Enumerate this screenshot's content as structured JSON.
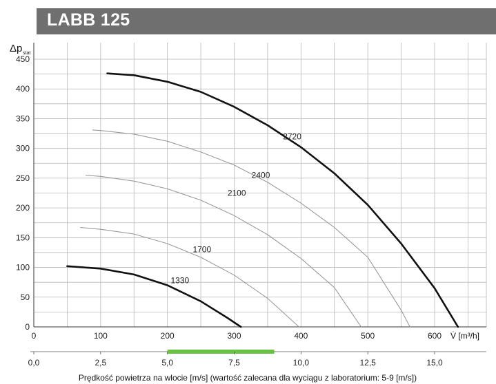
{
  "header": {
    "title": "LABB 125"
  },
  "colors": {
    "header_bg": "#6f6f6f",
    "grid": "#b8b8b8",
    "curve_bold": "#111111",
    "curve_thin": "#9a9a9a",
    "recommended_range": "#6cc04a"
  },
  "chart_data": {
    "type": "line",
    "title": "LABB 125",
    "ylabel": "Δp",
    "ylabel_sub": "stat",
    "xlabel": "V̇ [m³/h]",
    "xlabel_secondary": "Prędkość powietrza na wlocie [m/s] (wartość zalecana dla wyciągu z laboratorium: 5-9 [m/s])",
    "xlim": [
      0,
      650
    ],
    "ylim": [
      0,
      450
    ],
    "yticks": [
      "0",
      "50",
      "100",
      "150",
      "200",
      "250",
      "300",
      "350",
      "400",
      "450"
    ],
    "xticks": [
      "0",
      "100",
      "200",
      "300",
      "400",
      "500",
      "600"
    ],
    "secondary_xlim": [
      0,
      16.5
    ],
    "secondary_xticks": [
      "0,0",
      "2,5",
      "5,0",
      "7,5",
      "10,0",
      "12,5",
      "15,0"
    ],
    "recommended_velocity_range": [
      5,
      9
    ],
    "grid": true,
    "series": [
      {
        "name": "1330",
        "style": "bold",
        "label_at": [
          205,
          78
        ],
        "x": [
          50,
          100,
          150,
          200,
          250,
          290,
          310
        ],
        "y": [
          102,
          98,
          88,
          70,
          43,
          15,
          0
        ]
      },
      {
        "name": "1700",
        "style": "thin",
        "label_at": [
          238,
          130
        ],
        "x": [
          70,
          100,
          150,
          200,
          250,
          300,
          350,
          397
        ],
        "y": [
          167,
          164,
          156,
          140,
          117,
          87,
          48,
          0
        ]
      },
      {
        "name": "2100",
        "style": "thin",
        "label_at": [
          290,
          225
        ],
        "x": [
          78,
          100,
          150,
          200,
          250,
          300,
          350,
          400,
          450,
          490
        ],
        "y": [
          255,
          253,
          245,
          232,
          213,
          187,
          155,
          115,
          66,
          0
        ]
      },
      {
        "name": "2400",
        "style": "thin",
        "label_at": [
          326,
          255
        ],
        "x": [
          88,
          100,
          150,
          200,
          250,
          300,
          350,
          400,
          450,
          500,
          550,
          563
        ],
        "y": [
          331,
          330,
          324,
          312,
          294,
          272,
          243,
          208,
          167,
          117,
          28,
          0
        ]
      },
      {
        "name": "2720",
        "style": "bold",
        "label_at": [
          373,
          320
        ],
        "x": [
          110,
          150,
          200,
          250,
          300,
          350,
          400,
          450,
          500,
          550,
          600,
          635
        ],
        "y": [
          426,
          423,
          412,
          395,
          370,
          339,
          302,
          258,
          205,
          140,
          65,
          0
        ]
      }
    ]
  }
}
